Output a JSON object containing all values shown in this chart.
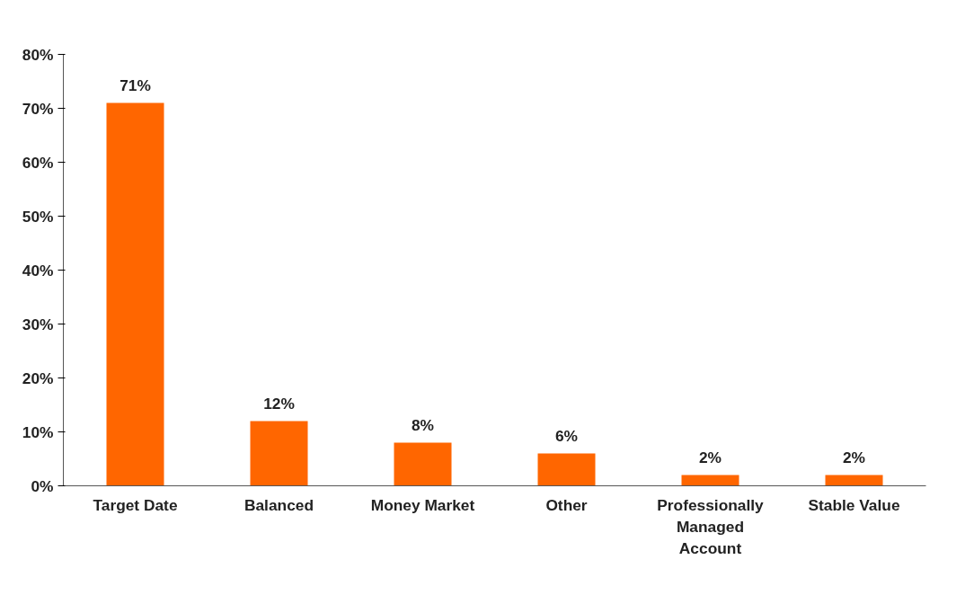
{
  "chart_data": {
    "type": "bar",
    "categories": [
      "Target Date",
      "Balanced",
      "Money Market",
      "Other",
      "Professionally Managed Account",
      "Stable Value"
    ],
    "values": [
      71,
      12,
      8,
      6,
      2,
      2
    ],
    "color": "#ff6600",
    "value_labels": [
      "71%",
      "12%",
      "8%",
      "6%",
      "2%",
      "2%"
    ],
    "ylim": [
      0,
      80
    ],
    "yticks": [
      {
        "value": 0,
        "label": "0%"
      },
      {
        "value": 10,
        "label": "10%"
      },
      {
        "value": 20,
        "label": "20%"
      },
      {
        "value": 30,
        "label": "30%"
      },
      {
        "value": 40,
        "label": "40%"
      },
      {
        "value": 50,
        "label": "50%"
      },
      {
        "value": 60,
        "label": "60%"
      },
      {
        "value": 70,
        "label": "70%"
      },
      {
        "value": 80,
        "label": "80%"
      }
    ],
    "grid": false
  }
}
